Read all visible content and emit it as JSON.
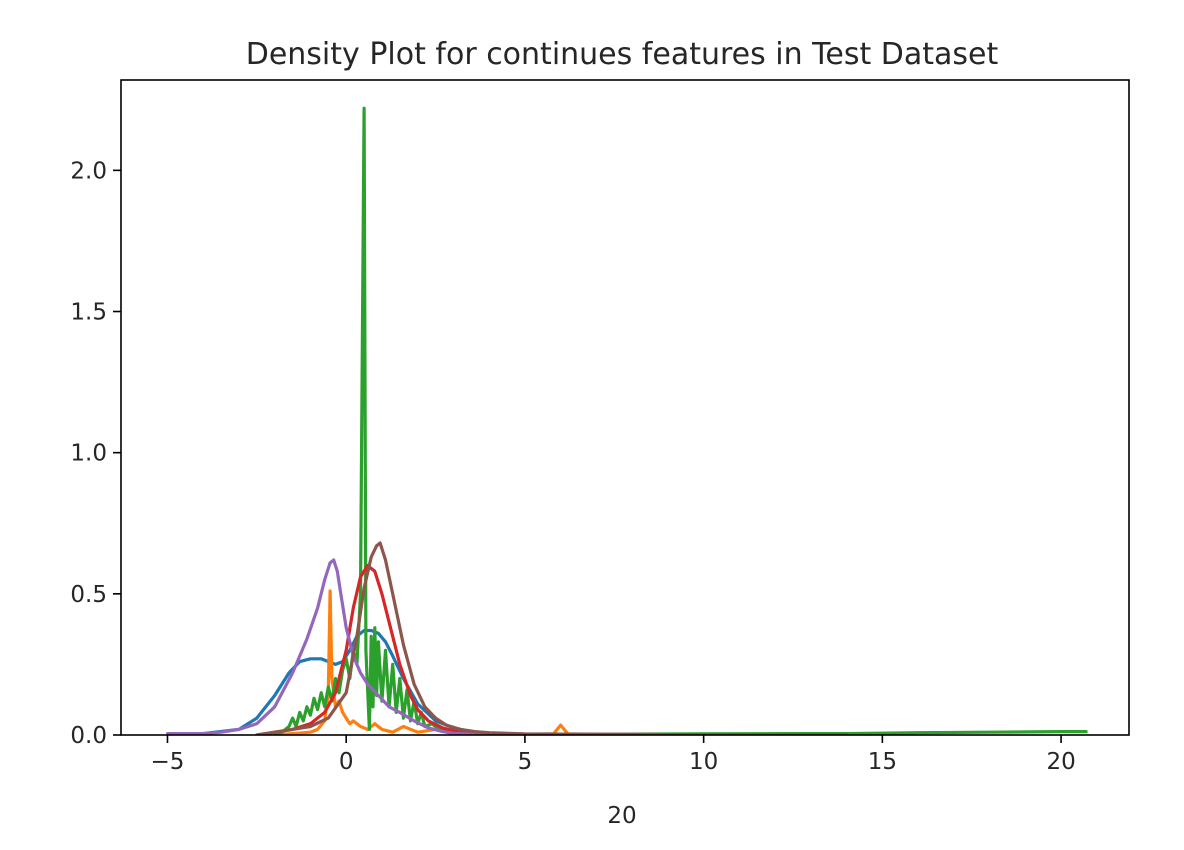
{
  "chart_data": {
    "type": "line",
    "title": "Density Plot for continues features in Test Dataset",
    "xlabel": "20",
    "ylabel": "",
    "xlim": [
      -6.3,
      21.9
    ],
    "ylim": [
      0,
      2.32
    ],
    "xticks": [
      -5,
      0,
      5,
      10,
      15,
      20
    ],
    "xtick_labels": [
      "−5",
      "0",
      "5",
      "10",
      "15",
      "20"
    ],
    "yticks": [
      0.0,
      0.5,
      1.0,
      1.5,
      2.0
    ],
    "ytick_labels": [
      "0.0",
      "0.5",
      "1.0",
      "1.5",
      "2.0"
    ],
    "grid": false,
    "legend": "none",
    "series": [
      {
        "color": "#1f77b4",
        "x": [
          -5.0,
          -4.0,
          -3.0,
          -2.5,
          -2.0,
          -1.6,
          -1.3,
          -1.0,
          -0.7,
          -0.5,
          -0.3,
          -0.1,
          0.1,
          0.3,
          0.5,
          0.7,
          0.9,
          1.1,
          1.3,
          1.6,
          2.0,
          2.5,
          3.0,
          3.5,
          4.0,
          5.0,
          8.0,
          14.0
        ],
        "y": [
          0.0,
          0.005,
          0.02,
          0.06,
          0.14,
          0.22,
          0.26,
          0.27,
          0.27,
          0.26,
          0.25,
          0.26,
          0.3,
          0.35,
          0.37,
          0.37,
          0.36,
          0.33,
          0.28,
          0.2,
          0.11,
          0.05,
          0.025,
          0.012,
          0.006,
          0.003,
          0.001,
          0.0
        ]
      },
      {
        "color": "#ff7f0e",
        "x": [
          -2.0,
          -1.5,
          -1.0,
          -0.8,
          -0.6,
          -0.5,
          -0.45,
          -0.4,
          -0.3,
          -0.2,
          -0.1,
          0.0,
          0.1,
          0.2,
          0.4,
          0.6,
          0.8,
          1.0,
          1.3,
          1.6,
          2.0,
          2.5,
          3.0,
          4.0,
          5.0,
          5.8,
          6.0,
          6.2,
          7.0,
          10.0,
          14.0
        ],
        "y": [
          0.0,
          0.005,
          0.01,
          0.02,
          0.05,
          0.15,
          0.51,
          0.2,
          0.1,
          0.12,
          0.08,
          0.06,
          0.04,
          0.05,
          0.03,
          0.02,
          0.04,
          0.02,
          0.01,
          0.03,
          0.01,
          0.02,
          0.005,
          0.003,
          0.002,
          0.004,
          0.035,
          0.004,
          0.002,
          0.001,
          0.0
        ]
      },
      {
        "color": "#2ca02c",
        "x": [
          -2.0,
          -1.8,
          -1.6,
          -1.5,
          -1.4,
          -1.3,
          -1.2,
          -1.1,
          -1.0,
          -0.9,
          -0.8,
          -0.7,
          -0.6,
          -0.5,
          -0.4,
          -0.3,
          -0.2,
          -0.1,
          0.0,
          0.1,
          0.2,
          0.3,
          0.4,
          0.5,
          0.55,
          0.65,
          0.7,
          0.75,
          0.8,
          0.85,
          0.9,
          1.0,
          1.1,
          1.2,
          1.3,
          1.4,
          1.5,
          1.6,
          1.7,
          1.8,
          1.9,
          2.0,
          2.1,
          2.2,
          2.4,
          2.6,
          3.0,
          3.5,
          4.0,
          5.0,
          7.0,
          10.0,
          13.0,
          14.0,
          16.0,
          18.0,
          20.0,
          20.7
        ],
        "y": [
          0.0,
          0.01,
          0.03,
          0.06,
          0.03,
          0.08,
          0.05,
          0.1,
          0.07,
          0.13,
          0.09,
          0.15,
          0.1,
          0.17,
          0.12,
          0.2,
          0.15,
          0.23,
          0.27,
          0.2,
          0.3,
          0.25,
          0.5,
          2.22,
          0.3,
          0.02,
          0.35,
          0.1,
          0.38,
          0.14,
          0.33,
          0.12,
          0.3,
          0.1,
          0.25,
          0.08,
          0.2,
          0.06,
          0.16,
          0.05,
          0.12,
          0.04,
          0.08,
          0.03,
          0.04,
          0.02,
          0.01,
          0.006,
          0.004,
          0.003,
          0.003,
          0.004,
          0.005,
          0.005,
          0.008,
          0.01,
          0.012,
          0.012
        ]
      },
      {
        "color": "#d62728",
        "x": [
          -2.5,
          -2.0,
          -1.5,
          -1.0,
          -0.6,
          -0.3,
          0.0,
          0.2,
          0.4,
          0.6,
          0.8,
          1.0,
          1.2,
          1.5,
          1.8,
          2.0,
          2.3,
          2.7,
          3.0,
          3.5,
          4.0,
          5.0,
          7.0,
          10.0,
          14.0
        ],
        "y": [
          0.0,
          0.01,
          0.02,
          0.04,
          0.08,
          0.15,
          0.3,
          0.45,
          0.56,
          0.6,
          0.58,
          0.5,
          0.4,
          0.25,
          0.14,
          0.09,
          0.05,
          0.025,
          0.015,
          0.008,
          0.005,
          0.003,
          0.002,
          0.001,
          0.0
        ]
      },
      {
        "color": "#9467bd",
        "x": [
          -5.0,
          -4.0,
          -3.5,
          -3.0,
          -2.5,
          -2.0,
          -1.5,
          -1.1,
          -0.8,
          -0.6,
          -0.45,
          -0.35,
          -0.25,
          -0.15,
          0.0,
          0.2,
          0.4,
          0.6,
          0.9,
          1.2,
          1.5,
          1.9,
          2.3,
          2.7,
          3.0,
          3.5,
          4.0,
          5.0
        ],
        "y": [
          0.005,
          0.005,
          0.01,
          0.02,
          0.04,
          0.1,
          0.22,
          0.34,
          0.45,
          0.55,
          0.61,
          0.62,
          0.58,
          0.5,
          0.38,
          0.28,
          0.22,
          0.18,
          0.14,
          0.1,
          0.08,
          0.05,
          0.025,
          0.012,
          0.006,
          0.003,
          0.002,
          0.0
        ]
      },
      {
        "color": "#8c564b",
        "x": [
          -2.5,
          -2.0,
          -1.5,
          -1.0,
          -0.5,
          0.0,
          0.3,
          0.5,
          0.7,
          0.85,
          0.95,
          1.1,
          1.3,
          1.6,
          1.9,
          2.2,
          2.5,
          2.8,
          3.2,
          3.6,
          4.0,
          5.0,
          7.0,
          10.0,
          14.0
        ],
        "y": [
          0.0,
          0.01,
          0.02,
          0.03,
          0.06,
          0.15,
          0.35,
          0.52,
          0.63,
          0.67,
          0.68,
          0.62,
          0.5,
          0.32,
          0.18,
          0.1,
          0.06,
          0.035,
          0.02,
          0.012,
          0.008,
          0.004,
          0.002,
          0.001,
          0.0
        ]
      }
    ]
  }
}
